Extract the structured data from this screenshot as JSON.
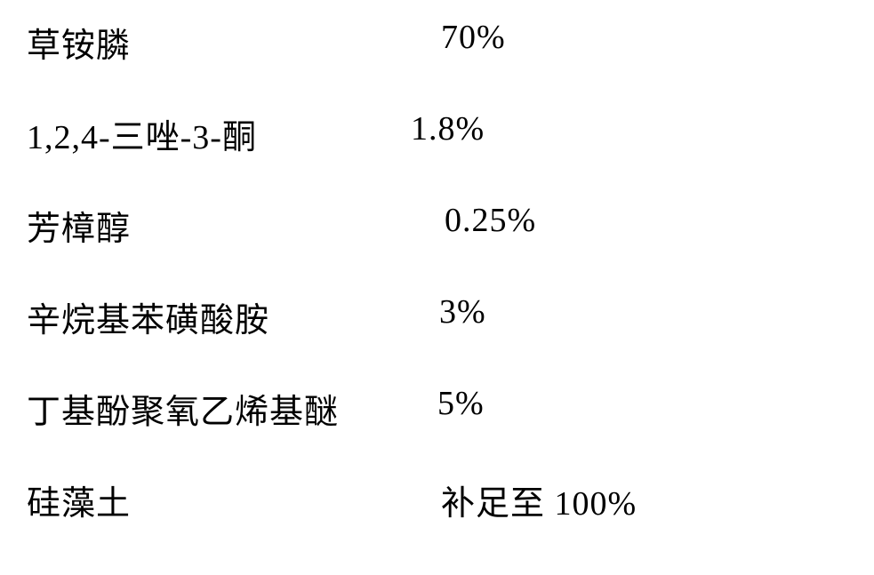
{
  "table": {
    "text_color": "#000000",
    "background_color": "#ffffff",
    "font_size_pt": 28,
    "font_family": "SimSun",
    "rows": [
      {
        "label": "草铵膦",
        "value": "70%"
      },
      {
        "label": "1,2,4-三唑-3-酮",
        "value": "1.8%"
      },
      {
        "label": "芳樟醇",
        "value": "0.25%"
      },
      {
        "label": "辛烷基苯磺酸胺",
        "value": "3%"
      },
      {
        "label": "丁基酚聚氧乙烯基醚",
        "value": "5%"
      },
      {
        "label": "硅藻土",
        "value": "补足至 100%"
      }
    ]
  }
}
